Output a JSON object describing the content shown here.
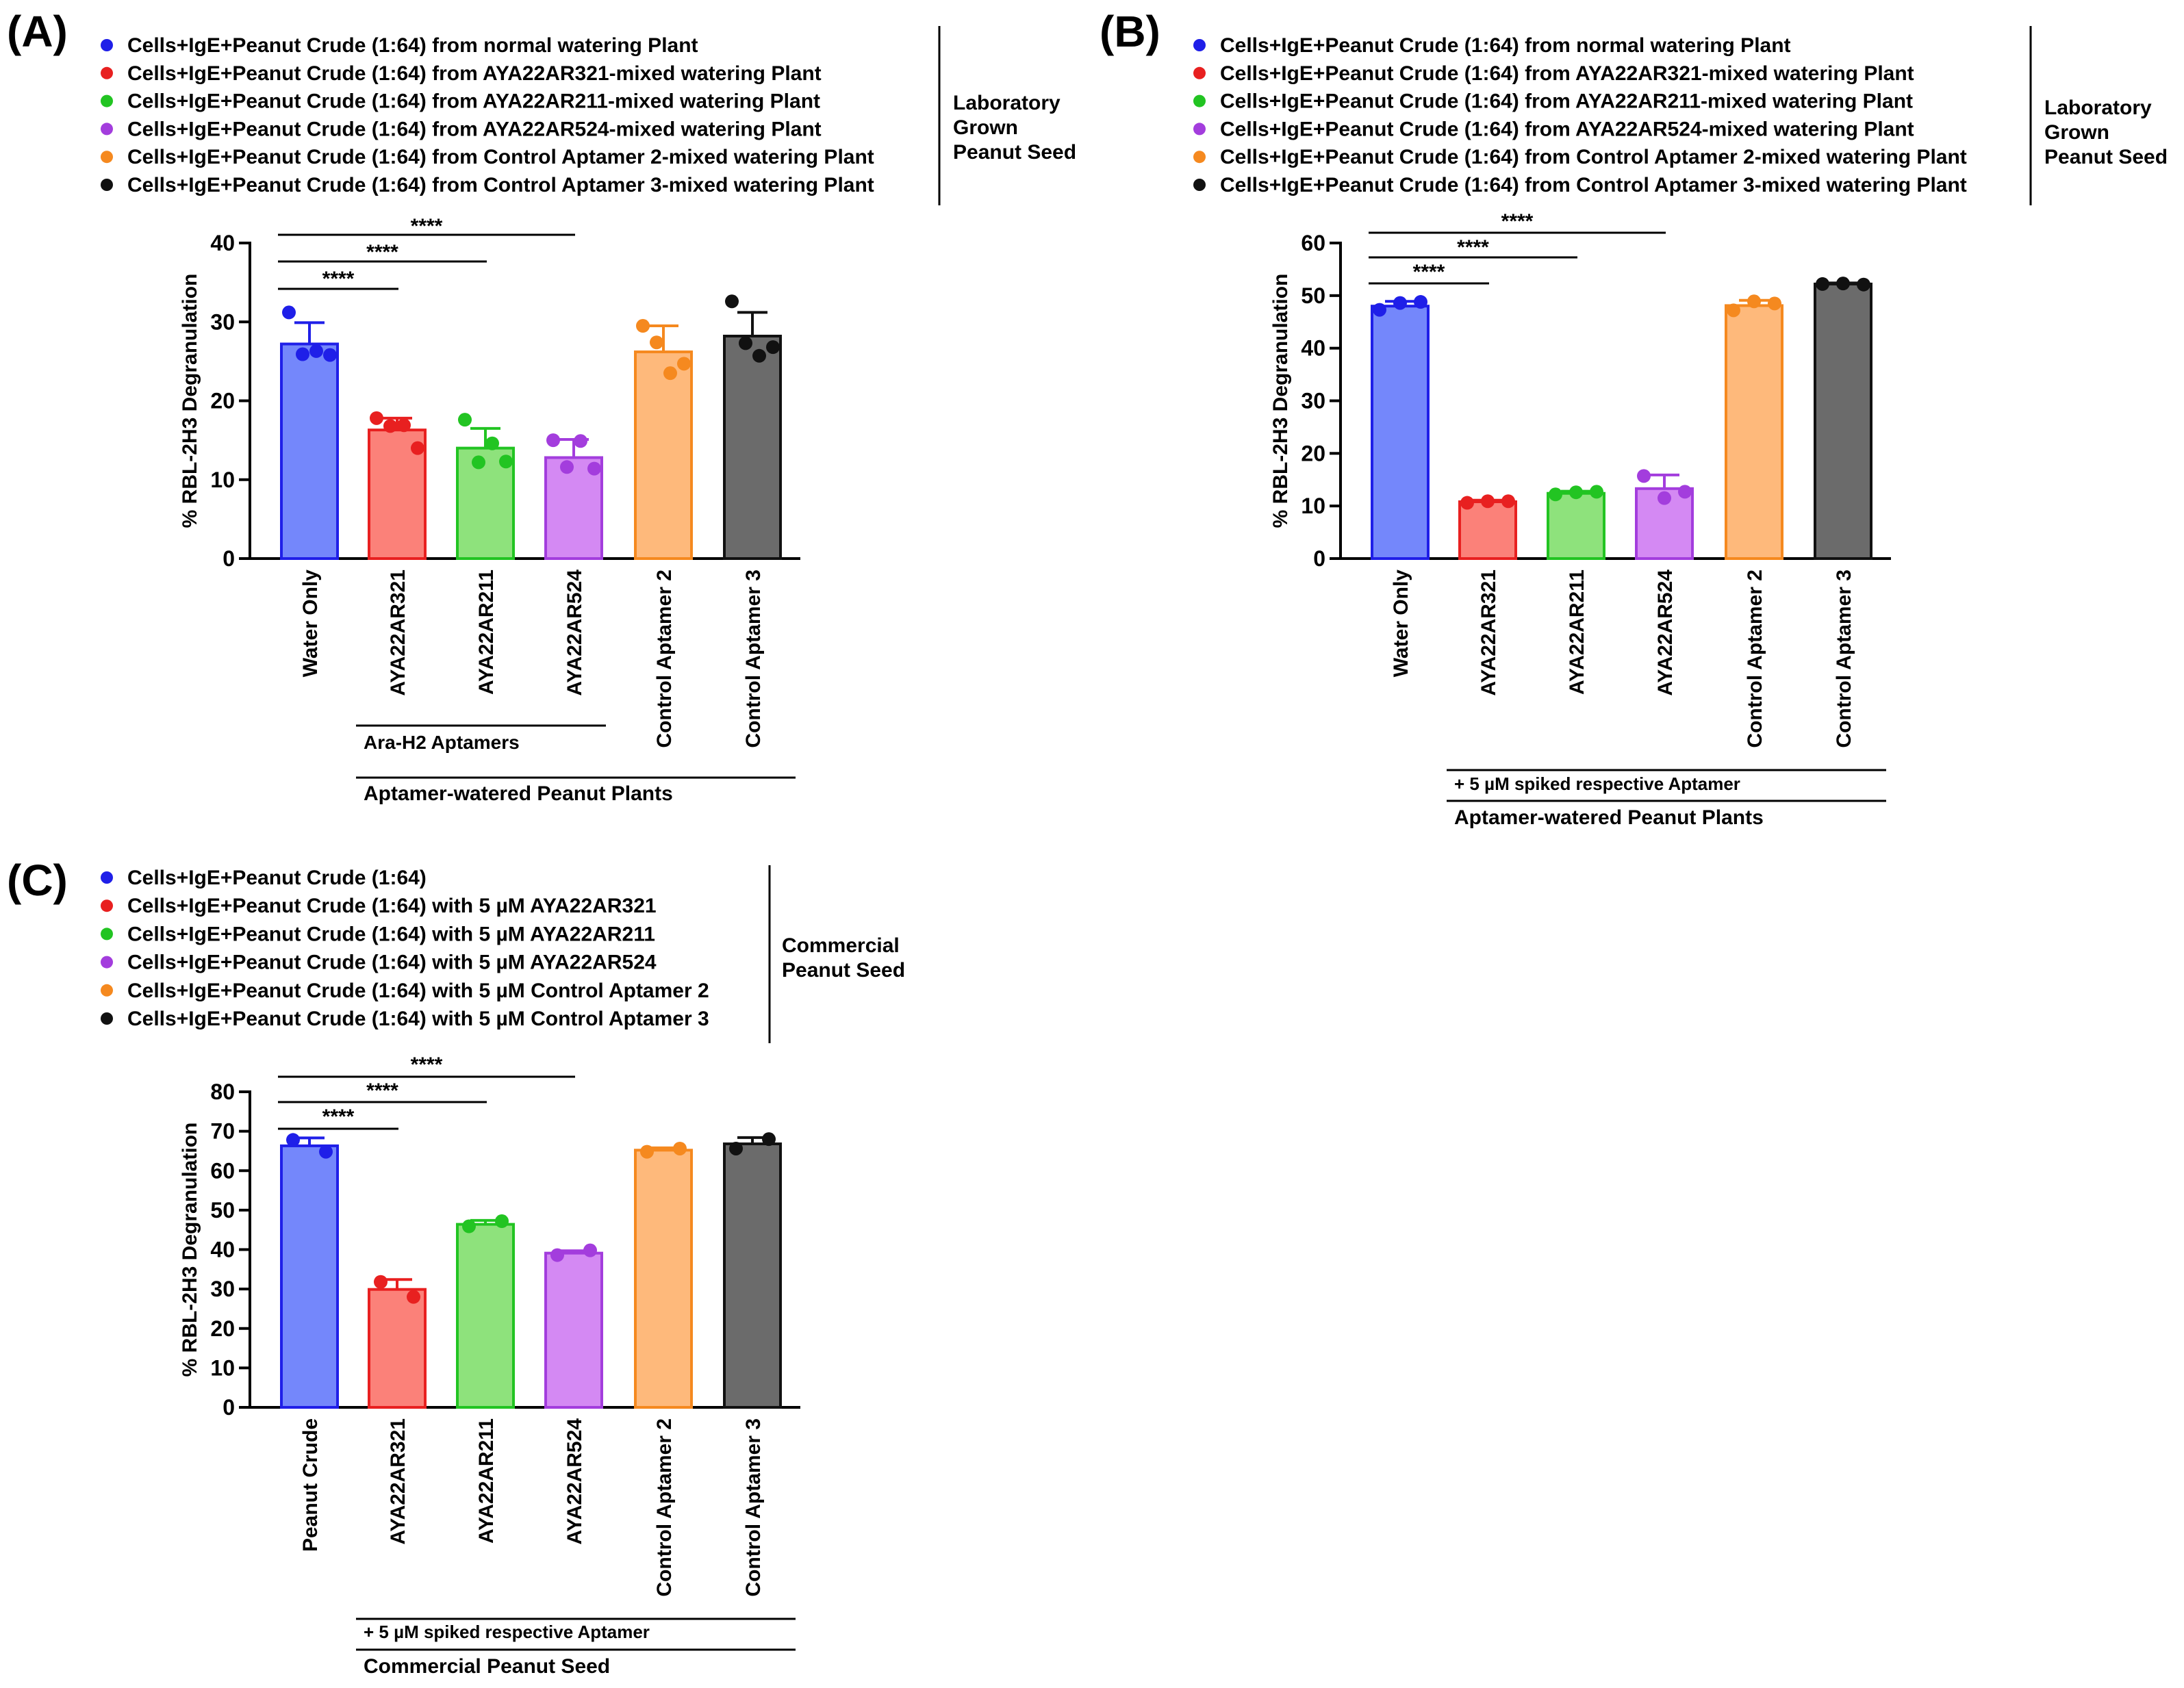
{
  "figure": {
    "panels": [
      {
        "id": "A",
        "label": "(A)",
        "legend": [
          {
            "text": "Cells+IgE+Peanut Crude (1:64) from normal watering Plant",
            "color": "#1f1fe8"
          },
          {
            "text": "Cells+IgE+Peanut Crude (1:64) from AYA22AR321-mixed watering Plant",
            "color": "#e82020"
          },
          {
            "text": "Cells+IgE+Peanut Crude (1:64) from AYA22AR211-mixed watering Plant",
            "color": "#22c422"
          },
          {
            "text": "Cells+IgE+Peanut Crude (1:64) from AYA22AR524-mixed watering Plant",
            "color": "#a33ddd"
          },
          {
            "text": "Cells+IgE+Peanut Crude (1:64) from Control Aptamer 2-mixed watering Plant",
            "color": "#f5891f"
          },
          {
            "text": "Cells+IgE+Peanut Crude (1:64) from Control Aptamer 3-mixed watering Plant",
            "color": "#111111"
          }
        ],
        "side_label": [
          "Laboratory",
          "Grown",
          "Peanut Seed"
        ],
        "group_labels": [
          {
            "text": "Ara-H2 Aptamers"
          },
          {
            "text": "Aptamer-watered Peanut Plants"
          }
        ]
      },
      {
        "id": "B",
        "label": "(B)",
        "legend": [
          {
            "text": "Cells+IgE+Peanut Crude (1:64) from normal watering Plant",
            "color": "#1f1fe8"
          },
          {
            "text": "Cells+IgE+Peanut Crude (1:64) from AYA22AR321-mixed watering Plant",
            "color": "#e82020"
          },
          {
            "text": "Cells+IgE+Peanut Crude (1:64) from AYA22AR211-mixed watering Plant",
            "color": "#22c422"
          },
          {
            "text": "Cells+IgE+Peanut Crude (1:64) from AYA22AR524-mixed watering Plant",
            "color": "#a33ddd"
          },
          {
            "text": "Cells+IgE+Peanut Crude (1:64) from Control Aptamer 2-mixed watering Plant",
            "color": "#f5891f"
          },
          {
            "text": "Cells+IgE+Peanut Crude (1:64) from Control Aptamer 3-mixed watering Plant",
            "color": "#111111"
          }
        ],
        "side_label": [
          "Laboratory",
          "Grown",
          "Peanut Seed"
        ],
        "group_labels": [
          {
            "text": "+ 5 µM spiked respective  Aptamer"
          },
          {
            "text": "Aptamer-watered Peanut Plants"
          }
        ]
      },
      {
        "id": "C",
        "label": "(C)",
        "legend": [
          {
            "text": "Cells+IgE+Peanut Crude (1:64)",
            "color": "#1f1fe8"
          },
          {
            "text": "Cells+IgE+Peanut Crude (1:64) with 5 µM AYA22AR321",
            "color": "#e82020"
          },
          {
            "text": "Cells+IgE+Peanut Crude (1:64) with 5 µM AYA22AR211",
            "color": "#22c422"
          },
          {
            "text": "Cells+IgE+Peanut Crude (1:64) with 5 µM AYA22AR524",
            "color": "#a33ddd"
          },
          {
            "text": "Cells+IgE+Peanut Crude (1:64) with 5 µM Control Aptamer 2",
            "color": "#f5891f"
          },
          {
            "text": "Cells+IgE+Peanut Crude (1:64) with 5 µM Control Aptamer 3",
            "color": "#111111"
          }
        ],
        "side_label": [
          "Commercial",
          "Peanut Seed"
        ],
        "group_labels": [
          {
            "text": "+ 5 µM spiked respective  Aptamer"
          },
          {
            "text": "Commercial Peanut Seed"
          }
        ]
      }
    ]
  },
  "chart_data": [
    {
      "type": "bar",
      "panel": "A",
      "ylabel": "% RBL-2H3 Degranulation",
      "ylim": [
        0,
        40
      ],
      "yticks": [
        0,
        10,
        20,
        30,
        40
      ],
      "categories": [
        "Water Only",
        "AYA22AR321",
        "AYA22AR211",
        "AYA22AR524",
        "Control Aptamer 2",
        "Control Aptamer 3"
      ],
      "values": [
        27.2,
        16.3,
        14.0,
        12.8,
        26.2,
        28.2
      ],
      "errors": [
        2.7,
        1.5,
        2.5,
        2.3,
        3.3,
        3.0
      ],
      "points": [
        [
          31.2,
          25.9,
          26.3,
          25.8
        ],
        [
          17.8,
          16.8,
          16.9,
          14.0
        ],
        [
          17.6,
          12.2,
          14.6,
          12.3
        ],
        [
          15.0,
          11.6,
          14.9,
          11.4
        ],
        [
          29.5,
          27.4,
          23.5,
          24.7
        ],
        [
          32.6,
          27.3,
          25.7,
          26.8
        ]
      ],
      "fills": [
        "#7487fb",
        "#fb8179",
        "#8ee27c",
        "#d489f3",
        "#feb97b",
        "#6b6b6b"
      ],
      "strokes": [
        "#1f1fe8",
        "#e82020",
        "#22c422",
        "#a33ddd",
        "#f5891f",
        "#111111"
      ],
      "significance": [
        {
          "from": 0,
          "to": 1,
          "label": "****"
        },
        {
          "from": 0,
          "to": 2,
          "label": "****"
        },
        {
          "from": 0,
          "to": 3,
          "label": "****"
        }
      ]
    },
    {
      "type": "bar",
      "panel": "B",
      "ylabel": "% RBL-2H3 Degranulation",
      "ylim": [
        0,
        60
      ],
      "yticks": [
        0,
        10,
        20,
        30,
        40,
        50,
        60
      ],
      "categories": [
        "Water Only",
        "AYA22AR321",
        "AYA22AR211",
        "AYA22AR524",
        "Control Aptamer 2",
        "Control Aptamer 3"
      ],
      "values": [
        48.0,
        10.8,
        12.4,
        13.3,
        48.1,
        52.2
      ],
      "errors": [
        0.9,
        0.3,
        0.4,
        2.6,
        1.0,
        0.2
      ],
      "points": [
        [
          47.3,
          48.6,
          48.8
        ],
        [
          10.6,
          10.9,
          10.9
        ],
        [
          12.2,
          12.6,
          12.7
        ],
        [
          15.7,
          11.5,
          12.7
        ],
        [
          47.2,
          48.9,
          48.5
        ],
        [
          52.2,
          52.3,
          52.1
        ]
      ],
      "fills": [
        "#7487fb",
        "#fb8179",
        "#8ee27c",
        "#d489f3",
        "#feb97b",
        "#6b6b6b"
      ],
      "strokes": [
        "#1f1fe8",
        "#e82020",
        "#22c422",
        "#a33ddd",
        "#f5891f",
        "#111111"
      ],
      "significance": [
        {
          "from": 0,
          "to": 1,
          "label": "****"
        },
        {
          "from": 0,
          "to": 2,
          "label": "****"
        },
        {
          "from": 0,
          "to": 3,
          "label": "****"
        }
      ]
    },
    {
      "type": "bar",
      "panel": "C",
      "ylabel": "% RBL-2H3 Degranulation",
      "ylim": [
        0,
        80
      ],
      "yticks": [
        0,
        10,
        20,
        30,
        40,
        50,
        60,
        70,
        80
      ],
      "categories": [
        "Peanut Crude",
        "AYA22AR321",
        "AYA22AR211",
        "AYA22AR524",
        "Control Aptamer 2",
        "Control Aptamer 3"
      ],
      "values": [
        66.3,
        29.9,
        46.4,
        39.1,
        65.2,
        66.8
      ],
      "errors": [
        2.0,
        2.5,
        1.0,
        0.6,
        0.6,
        1.6
      ],
      "points": [
        [
          67.8,
          64.8
        ],
        [
          31.8,
          28.0
        ],
        [
          45.9,
          47.2
        ],
        [
          38.6,
          39.8
        ],
        [
          64.8,
          65.6
        ],
        [
          65.6,
          68.0
        ]
      ],
      "fills": [
        "#7487fb",
        "#fb8179",
        "#8ee27c",
        "#d489f3",
        "#feb97b",
        "#6b6b6b"
      ],
      "strokes": [
        "#1f1fe8",
        "#e82020",
        "#22c422",
        "#a33ddd",
        "#f5891f",
        "#111111"
      ],
      "significance": [
        {
          "from": 0,
          "to": 1,
          "label": "****"
        },
        {
          "from": 0,
          "to": 2,
          "label": "****"
        },
        {
          "from": 0,
          "to": 3,
          "label": "****"
        }
      ]
    }
  ]
}
